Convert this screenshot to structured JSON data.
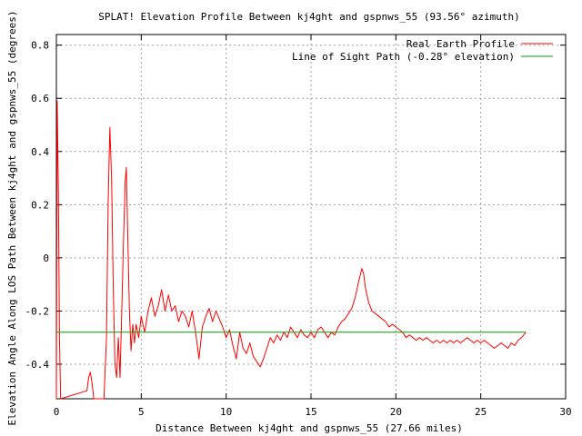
{
  "chart_data": {
    "type": "line",
    "title": "SPLAT! Elevation Profile Between kj4ght and gspnws_55 (93.56° azimuth)",
    "xlabel": "Distance Between kj4ght and gspnws_55 (27.66 miles)",
    "ylabel": "Elevation Angle Along LOS Path Between kj4ght and gspnws_55 (degrees)",
    "xlim": [
      0,
      30
    ],
    "ylim": [
      -0.53,
      0.84
    ],
    "x_ticks": [
      0,
      5,
      10,
      15,
      20,
      25,
      30
    ],
    "x_tick_labels": [
      "0",
      "5",
      "10",
      "15",
      "20",
      "25",
      "30"
    ],
    "y_ticks": [
      -0.4,
      -0.2,
      0,
      0.2,
      0.4,
      0.6,
      0.8
    ],
    "y_tick_labels": [
      "-0.4",
      "-0.2",
      "0",
      "0.2",
      "0.4",
      "0.6",
      "0.8"
    ],
    "grid": true,
    "legend_position": "top-right",
    "series": [
      {
        "name": "Real Earth Profile",
        "color": "#ff0000",
        "points": [
          [
            0.0,
            -0.53
          ],
          [
            0.05,
            0.59
          ],
          [
            0.12,
            0.25
          ],
          [
            0.18,
            -0.3
          ],
          [
            0.25,
            -0.53
          ],
          [
            1.8,
            -0.5
          ],
          [
            1.9,
            -0.45
          ],
          [
            2.0,
            -0.43
          ],
          [
            2.1,
            -0.47
          ],
          [
            2.2,
            -0.53
          ],
          [
            2.8,
            -0.53
          ],
          [
            2.95,
            -0.3
          ],
          [
            3.05,
            0.2
          ],
          [
            3.15,
            0.49
          ],
          [
            3.25,
            0.3
          ],
          [
            3.35,
            -0.1
          ],
          [
            3.45,
            -0.4
          ],
          [
            3.55,
            -0.45
          ],
          [
            3.65,
            -0.3
          ],
          [
            3.75,
            -0.45
          ],
          [
            3.85,
            -0.2
          ],
          [
            3.95,
            0.05
          ],
          [
            4.05,
            0.28
          ],
          [
            4.12,
            0.34
          ],
          [
            4.2,
            0.1
          ],
          [
            4.3,
            -0.2
          ],
          [
            4.4,
            -0.35
          ],
          [
            4.5,
            -0.25
          ],
          [
            4.6,
            -0.32
          ],
          [
            4.7,
            -0.25
          ],
          [
            4.85,
            -0.3
          ],
          [
            5.0,
            -0.22
          ],
          [
            5.2,
            -0.28
          ],
          [
            5.4,
            -0.2
          ],
          [
            5.6,
            -0.15
          ],
          [
            5.8,
            -0.22
          ],
          [
            6.0,
            -0.18
          ],
          [
            6.2,
            -0.12
          ],
          [
            6.4,
            -0.2
          ],
          [
            6.6,
            -0.14
          ],
          [
            6.8,
            -0.2
          ],
          [
            7.0,
            -0.18
          ],
          [
            7.2,
            -0.24
          ],
          [
            7.4,
            -0.2
          ],
          [
            7.6,
            -0.22
          ],
          [
            7.8,
            -0.26
          ],
          [
            8.0,
            -0.2
          ],
          [
            8.2,
            -0.28
          ],
          [
            8.4,
            -0.38
          ],
          [
            8.6,
            -0.26
          ],
          [
            8.8,
            -0.22
          ],
          [
            9.0,
            -0.19
          ],
          [
            9.2,
            -0.24
          ],
          [
            9.4,
            -0.2
          ],
          [
            9.6,
            -0.23
          ],
          [
            9.8,
            -0.26
          ],
          [
            10.0,
            -0.3
          ],
          [
            10.2,
            -0.27
          ],
          [
            10.4,
            -0.33
          ],
          [
            10.6,
            -0.38
          ],
          [
            10.8,
            -0.28
          ],
          [
            11.0,
            -0.34
          ],
          [
            11.2,
            -0.36
          ],
          [
            11.4,
            -0.32
          ],
          [
            11.6,
            -0.37
          ],
          [
            11.8,
            -0.39
          ],
          [
            12.0,
            -0.41
          ],
          [
            12.2,
            -0.38
          ],
          [
            12.4,
            -0.34
          ],
          [
            12.6,
            -0.3
          ],
          [
            12.8,
            -0.32
          ],
          [
            13.0,
            -0.29
          ],
          [
            13.2,
            -0.31
          ],
          [
            13.4,
            -0.28
          ],
          [
            13.6,
            -0.3
          ],
          [
            13.8,
            -0.26
          ],
          [
            14.0,
            -0.28
          ],
          [
            14.2,
            -0.3
          ],
          [
            14.4,
            -0.27
          ],
          [
            14.6,
            -0.29
          ],
          [
            14.8,
            -0.3
          ],
          [
            15.0,
            -0.28
          ],
          [
            15.2,
            -0.3
          ],
          [
            15.4,
            -0.27
          ],
          [
            15.6,
            -0.26
          ],
          [
            15.8,
            -0.28
          ],
          [
            16.0,
            -0.3
          ],
          [
            16.2,
            -0.28
          ],
          [
            16.4,
            -0.29
          ],
          [
            16.6,
            -0.26
          ],
          [
            16.8,
            -0.24
          ],
          [
            17.0,
            -0.23
          ],
          [
            17.2,
            -0.21
          ],
          [
            17.4,
            -0.19
          ],
          [
            17.6,
            -0.15
          ],
          [
            17.8,
            -0.09
          ],
          [
            18.0,
            -0.04
          ],
          [
            18.1,
            -0.06
          ],
          [
            18.2,
            -0.11
          ],
          [
            18.4,
            -0.17
          ],
          [
            18.6,
            -0.2
          ],
          [
            18.8,
            -0.21
          ],
          [
            19.0,
            -0.22
          ],
          [
            19.2,
            -0.23
          ],
          [
            19.4,
            -0.24
          ],
          [
            19.6,
            -0.26
          ],
          [
            19.8,
            -0.25
          ],
          [
            20.0,
            -0.26
          ],
          [
            20.2,
            -0.27
          ],
          [
            20.4,
            -0.28
          ],
          [
            20.6,
            -0.3
          ],
          [
            20.8,
            -0.29
          ],
          [
            21.0,
            -0.3
          ],
          [
            21.2,
            -0.31
          ],
          [
            21.4,
            -0.3
          ],
          [
            21.6,
            -0.31
          ],
          [
            21.8,
            -0.3
          ],
          [
            22.0,
            -0.31
          ],
          [
            22.2,
            -0.32
          ],
          [
            22.4,
            -0.31
          ],
          [
            22.6,
            -0.32
          ],
          [
            22.8,
            -0.31
          ],
          [
            23.0,
            -0.32
          ],
          [
            23.2,
            -0.31
          ],
          [
            23.4,
            -0.32
          ],
          [
            23.6,
            -0.31
          ],
          [
            23.8,
            -0.32
          ],
          [
            24.0,
            -0.31
          ],
          [
            24.2,
            -0.3
          ],
          [
            24.4,
            -0.31
          ],
          [
            24.6,
            -0.32
          ],
          [
            24.8,
            -0.31
          ],
          [
            25.0,
            -0.32
          ],
          [
            25.2,
            -0.31
          ],
          [
            25.4,
            -0.32
          ],
          [
            25.6,
            -0.33
          ],
          [
            25.8,
            -0.34
          ],
          [
            26.0,
            -0.33
          ],
          [
            26.2,
            -0.32
          ],
          [
            26.4,
            -0.33
          ],
          [
            26.6,
            -0.34
          ],
          [
            26.8,
            -0.32
          ],
          [
            27.0,
            -0.33
          ],
          [
            27.2,
            -0.31
          ],
          [
            27.4,
            -0.3
          ],
          [
            27.66,
            -0.28
          ]
        ]
      },
      {
        "name": "Line of Sight Path (-0.28° elevation)",
        "color": "#00a000",
        "points": [
          [
            0,
            -0.28
          ],
          [
            27.66,
            -0.28
          ]
        ]
      }
    ]
  }
}
